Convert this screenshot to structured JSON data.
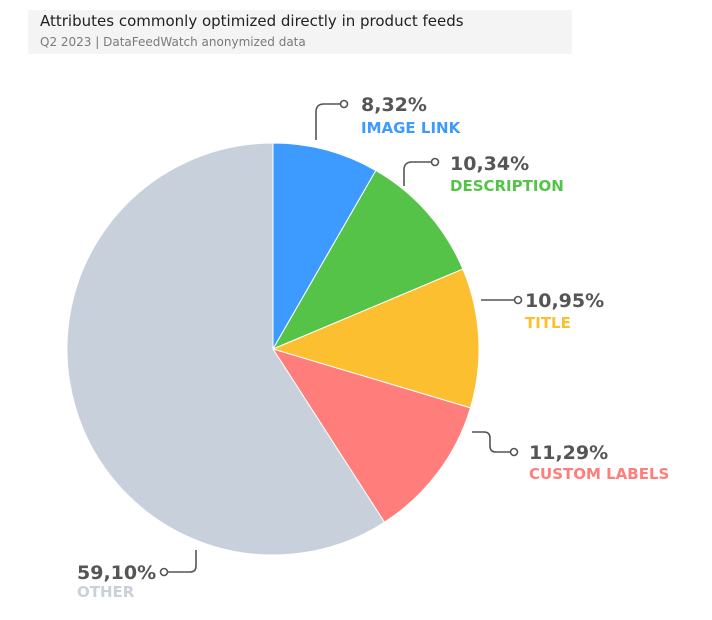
{
  "header": {
    "title": "Attributes commonly optimized directly in product feeds",
    "subtitle": "Q2 2023 | DataFeedWatch anonymized data"
  },
  "chart_data": {
    "type": "pie",
    "slices": [
      {
        "label": "IMAGE LINK",
        "value_label": "8,32%",
        "value": 8.32,
        "color": "#3d9bff"
      },
      {
        "label": "DESCRIPTION",
        "value_label": "10,34%",
        "value": 10.34,
        "color": "#55c347"
      },
      {
        "label": "TITLE",
        "value_label": "10,95%",
        "value": 10.95,
        "color": "#fbbf2f"
      },
      {
        "label": "CUSTOM LABELS",
        "value_label": "11,29%",
        "value": 11.29,
        "color": "#ff7d7a"
      },
      {
        "label": "OTHER",
        "value_label": "59,10%",
        "value": 59.1,
        "color": "#c8d0db"
      }
    ]
  }
}
